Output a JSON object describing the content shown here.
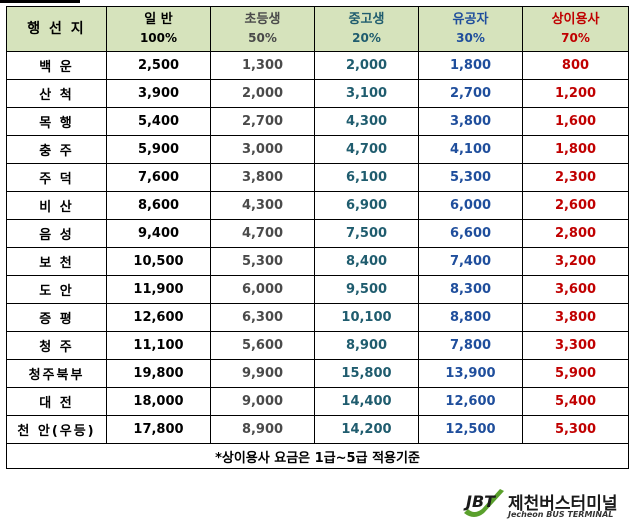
{
  "header": {
    "destination": "행 선 지",
    "columns": [
      {
        "label": "일 반",
        "rate": "100%"
      },
      {
        "label": "초등생",
        "rate": "50%"
      },
      {
        "label": "중고생",
        "rate": "20%"
      },
      {
        "label": "유공자",
        "rate": "30%"
      },
      {
        "label": "상이용사",
        "rate": "70%"
      }
    ]
  },
  "colors": {
    "header_bg": "#d6e3bc",
    "general": "#000000",
    "elementary": "#4a4a4a",
    "middle_high": "#1f5c6e",
    "merit": "#1f4e9c",
    "disabled_veteran": "#c00000",
    "logo_green": "#5aa02c"
  },
  "rows": [
    {
      "dest": "백 운",
      "fares": [
        "2,500",
        "1,300",
        "2,000",
        "1,800",
        "800"
      ]
    },
    {
      "dest": "산 척",
      "fares": [
        "3,900",
        "2,000",
        "3,100",
        "2,700",
        "1,200"
      ]
    },
    {
      "dest": "목 행",
      "fares": [
        "5,400",
        "2,700",
        "4,300",
        "3,800",
        "1,600"
      ]
    },
    {
      "dest": "충 주",
      "fares": [
        "5,900",
        "3,000",
        "4,700",
        "4,100",
        "1,800"
      ]
    },
    {
      "dest": "주 덕",
      "fares": [
        "7,600",
        "3,800",
        "6,100",
        "5,300",
        "2,300"
      ]
    },
    {
      "dest": "비 산",
      "fares": [
        "8,600",
        "4,300",
        "6,900",
        "6,000",
        "2,600"
      ]
    },
    {
      "dest": "음 성",
      "fares": [
        "9,400",
        "4,700",
        "7,500",
        "6,600",
        "2,800"
      ]
    },
    {
      "dest": "보 천",
      "fares": [
        "10,500",
        "5,300",
        "8,400",
        "7,400",
        "3,200"
      ]
    },
    {
      "dest": "도 안",
      "fares": [
        "11,900",
        "6,000",
        "9,500",
        "8,300",
        "3,600"
      ]
    },
    {
      "dest": "증 평",
      "fares": [
        "12,600",
        "6,300",
        "10,100",
        "8,800",
        "3,800"
      ]
    },
    {
      "dest": "청 주",
      "fares": [
        "11,100",
        "5,600",
        "8,900",
        "7,800",
        "3,300"
      ]
    },
    {
      "dest": "청주북부",
      "fares": [
        "19,800",
        "9,900",
        "15,800",
        "13,900",
        "5,900"
      ]
    },
    {
      "dest": "대 전",
      "fares": [
        "18,000",
        "9,000",
        "14,400",
        "12,600",
        "5,400"
      ]
    },
    {
      "dest": "천 안(우등)",
      "fares": [
        "17,800",
        "8,900",
        "14,200",
        "12,500",
        "5,300"
      ]
    }
  ],
  "note": "*상이용사 요금은 1급~5급 적용기준",
  "logo": {
    "mark": "JBT",
    "name": "제천버스터미널",
    "sub": "Jecheon BUS TERMINAL"
  }
}
